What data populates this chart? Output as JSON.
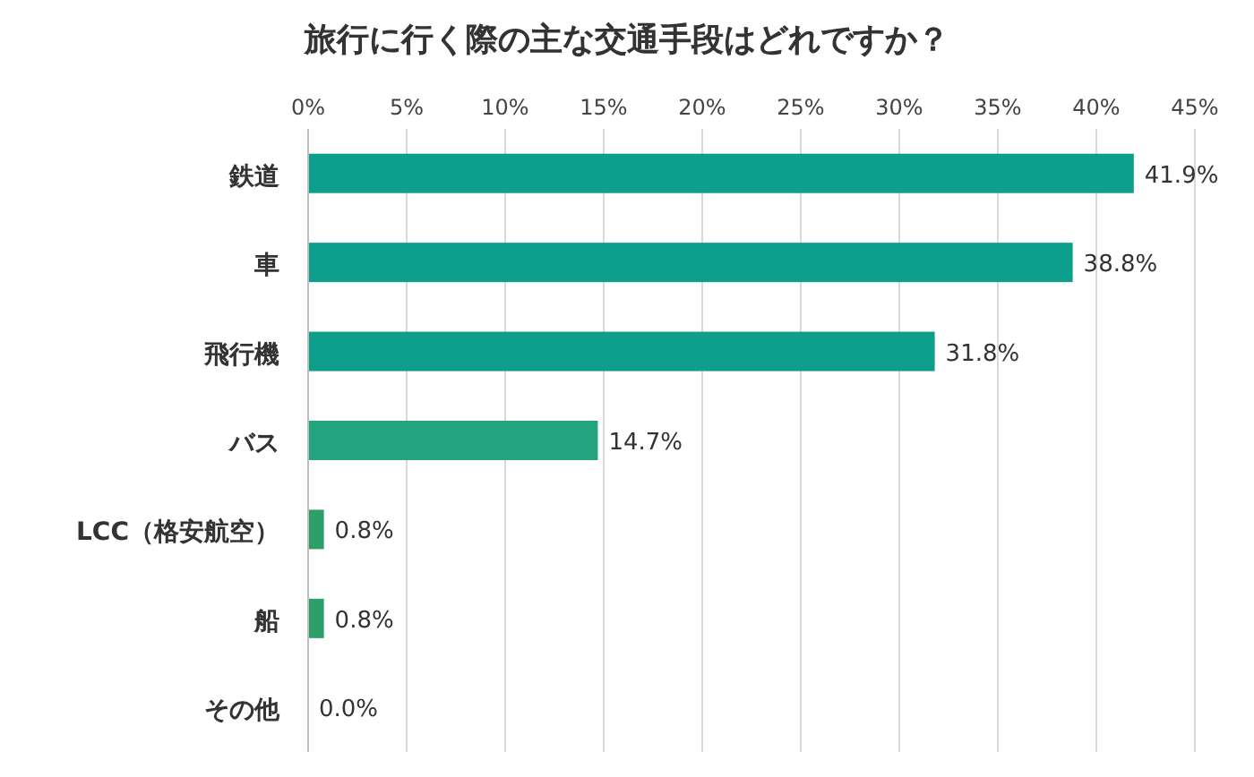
{
  "chart_data": {
    "type": "bar",
    "orientation": "horizontal",
    "title": "旅行に行く際の主な交通手段はどれですか？",
    "categories": [
      "鉄道",
      "車",
      "飛行機",
      "バス",
      "LCC（格安航空）",
      "船",
      "その他"
    ],
    "values": [
      41.9,
      38.8,
      31.8,
      14.7,
      0.8,
      0.8,
      0.0
    ],
    "value_labels": [
      "41.9%",
      "38.8%",
      "31.8%",
      "14.7%",
      "0.8%",
      "0.8%",
      "0.0%"
    ],
    "colors": [
      "#0e9f8c",
      "#0e9f8c",
      "#0e9f8c",
      "#22a47e",
      "#2e9f68",
      "#2e9f68",
      "#2e9f68"
    ],
    "xlim": [
      0,
      45
    ],
    "xticks": [
      {
        "value": 0,
        "label": "0%"
      },
      {
        "value": 5,
        "label": "5%"
      },
      {
        "value": 10,
        "label": "10%"
      },
      {
        "value": 15,
        "label": "15%"
      },
      {
        "value": 20,
        "label": "20%"
      },
      {
        "value": 25,
        "label": "25%"
      },
      {
        "value": 30,
        "label": "30%"
      },
      {
        "value": 35,
        "label": "35%"
      },
      {
        "value": 40,
        "label": "40%"
      },
      {
        "value": 45,
        "label": "45%"
      }
    ],
    "grid": "x"
  }
}
